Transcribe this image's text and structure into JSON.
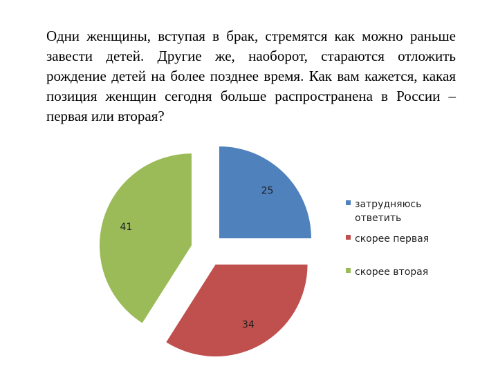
{
  "slide": {
    "question": "Одни женщины, вступая в брак, стремятся как можно раньше завести детей. Другие же, наоборот, стараются отложить рождение детей на более позднее время. Как вам кажется, какая позиция женщин сегодня больше распространена в России – первая или вторая?"
  },
  "chart_data": {
    "type": "pie",
    "exploded": true,
    "legend_position": "right",
    "categories": [
      "затрудняюсь ответить",
      "скорее первая",
      "скорее вторая"
    ],
    "values": [
      25,
      34,
      41
    ],
    "labels": [
      "25",
      "34",
      "41"
    ],
    "colors": [
      "#4f81bd",
      "#c0504d",
      "#9bbb59"
    ],
    "legend": [
      [
        "затрудняюсь",
        "ответить"
      ],
      [
        "скорее первая"
      ],
      [
        "скорее вторая"
      ]
    ]
  }
}
